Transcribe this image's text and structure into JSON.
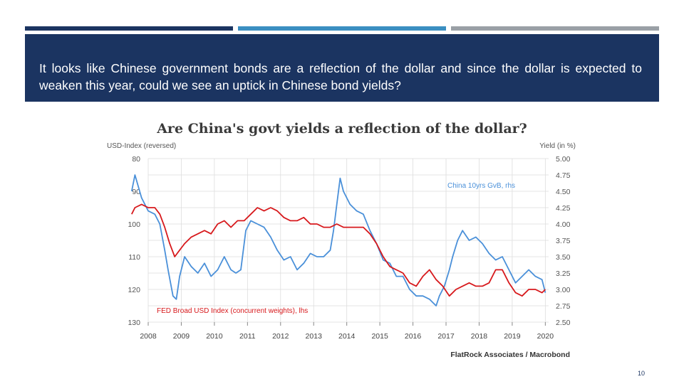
{
  "slide": {
    "question": "It looks like Chinese government bonds are a reflection of the dollar and since the dollar is expected to weaken this year, could we see an uptick in Chinese bond yields?",
    "page_number": "10",
    "colors": {
      "header": "#1b3461",
      "bar_1": "#1b3461",
      "bar_2": "#3b8fc1",
      "bar_3": "#9aa0a6"
    }
  },
  "chart_data": {
    "type": "line",
    "title": "Are China's govt yields a reflection of the dollar?",
    "left_axis_label": "USD-Index (reversed)",
    "right_axis_label": "Yield (in %)",
    "left_ticks": [
      "80",
      "90",
      "100",
      "110",
      "120",
      "130"
    ],
    "left_ylim": [
      80,
      130
    ],
    "left_reversed": true,
    "right_ticks": [
      "5.00",
      "4.75",
      "4.50",
      "4.25",
      "4.00",
      "3.75",
      "3.50",
      "3.25",
      "3.00",
      "2.75",
      "2.50"
    ],
    "right_ylim": [
      2.5,
      5.0
    ],
    "x_ticks": [
      "2008",
      "2009",
      "2010",
      "2011",
      "2012",
      "2013",
      "2014",
      "2015",
      "2016",
      "2017",
      "2018",
      "2019",
      "2020"
    ],
    "xlim": [
      2008,
      2020.1
    ],
    "source": "FlatRock Associates / Macrobond",
    "series": [
      {
        "name": "China 10yrs GvB, rhs",
        "color": "#4a90d9",
        "axis": "right",
        "x": [
          2007.5,
          2007.6,
          2007.8,
          2008.0,
          2008.2,
          2008.35,
          2008.5,
          2008.6,
          2008.75,
          2008.85,
          2008.95,
          2009.1,
          2009.3,
          2009.5,
          2009.7,
          2009.9,
          2010.1,
          2010.3,
          2010.5,
          2010.65,
          2010.8,
          2010.95,
          2011.1,
          2011.3,
          2011.5,
          2011.7,
          2011.9,
          2012.1,
          2012.3,
          2012.5,
          2012.7,
          2012.9,
          2013.1,
          2013.3,
          2013.5,
          2013.6,
          2013.7,
          2013.8,
          2013.9,
          2014.1,
          2014.3,
          2014.5,
          2014.7,
          2014.9,
          2015.1,
          2015.3,
          2015.5,
          2015.7,
          2015.9,
          2016.1,
          2016.3,
          2016.5,
          2016.6,
          2016.7,
          2016.8,
          2016.95,
          2017.1,
          2017.2,
          2017.35,
          2017.5,
          2017.7,
          2017.9,
          2018.1,
          2018.3,
          2018.5,
          2018.7,
          2018.9,
          2019.1,
          2019.3,
          2019.5,
          2019.7,
          2019.9,
          2020.0
        ],
        "values": [
          4.5,
          4.75,
          4.4,
          4.2,
          4.15,
          4.0,
          3.6,
          3.3,
          2.9,
          2.85,
          3.2,
          3.5,
          3.35,
          3.25,
          3.4,
          3.2,
          3.3,
          3.5,
          3.3,
          3.25,
          3.3,
          3.9,
          4.05,
          4.0,
          3.95,
          3.8,
          3.6,
          3.45,
          3.5,
          3.3,
          3.4,
          3.55,
          3.5,
          3.5,
          3.6,
          3.9,
          4.3,
          4.7,
          4.5,
          4.3,
          4.2,
          4.15,
          3.9,
          3.7,
          3.45,
          3.4,
          3.2,
          3.2,
          3.0,
          2.9,
          2.9,
          2.85,
          2.8,
          2.75,
          2.9,
          3.05,
          3.3,
          3.5,
          3.75,
          3.9,
          3.75,
          3.8,
          3.7,
          3.55,
          3.45,
          3.5,
          3.3,
          3.1,
          3.2,
          3.3,
          3.2,
          3.15,
          2.95
        ]
      },
      {
        "name": "FED Broad USD Index (concurrent weights), lhs",
        "color": "#d7191c",
        "axis": "left",
        "x": [
          2007.5,
          2007.6,
          2007.8,
          2008.0,
          2008.2,
          2008.35,
          2008.5,
          2008.65,
          2008.8,
          2008.95,
          2009.1,
          2009.3,
          2009.5,
          2009.7,
          2009.9,
          2010.1,
          2010.3,
          2010.5,
          2010.7,
          2010.9,
          2011.1,
          2011.3,
          2011.5,
          2011.7,
          2011.9,
          2012.1,
          2012.3,
          2012.5,
          2012.7,
          2012.9,
          2013.1,
          2013.3,
          2013.5,
          2013.7,
          2013.9,
          2014.1,
          2014.3,
          2014.5,
          2014.7,
          2014.9,
          2015.1,
          2015.3,
          2015.5,
          2015.7,
          2015.9,
          2016.1,
          2016.3,
          2016.5,
          2016.7,
          2016.9,
          2017.1,
          2017.3,
          2017.5,
          2017.7,
          2017.9,
          2018.1,
          2018.3,
          2018.5,
          2018.7,
          2018.9,
          2019.1,
          2019.3,
          2019.5,
          2019.7,
          2019.9,
          2020.0
        ],
        "values": [
          97,
          95,
          94,
          95,
          95,
          97,
          101,
          106,
          110,
          108,
          106,
          104,
          103,
          102,
          103,
          100,
          99,
          101,
          99,
          99,
          97,
          95,
          96,
          95,
          96,
          98,
          99,
          99,
          98,
          100,
          100,
          101,
          101,
          100,
          101,
          101,
          101,
          101,
          103,
          106,
          110,
          113,
          114,
          115,
          118,
          119,
          116,
          114,
          117,
          119,
          122,
          120,
          119,
          118,
          119,
          119,
          118,
          114,
          114,
          118,
          121,
          122,
          120,
          120,
          121,
          120
        ]
      }
    ]
  }
}
